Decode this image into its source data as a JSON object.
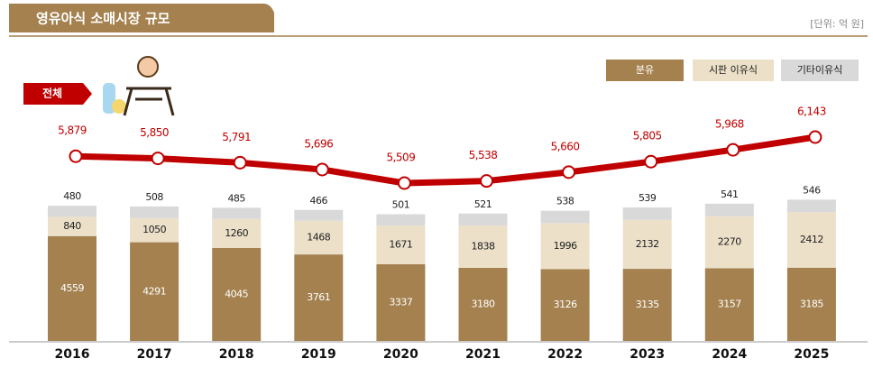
{
  "chart_data": {
    "type": "bar",
    "stacked": true,
    "title": "영유아식 소매시장 규모",
    "unit_note": "[단위: 억 원]",
    "categories": [
      "2016",
      "2017",
      "2018",
      "2019",
      "2020",
      "2021",
      "2022",
      "2023",
      "2024",
      "2025"
    ],
    "series": [
      {
        "name": "분유",
        "color": "#a4814f",
        "values": [
          4559,
          4291,
          4045,
          3761,
          3337,
          3180,
          3126,
          3135,
          3157,
          3185
        ]
      },
      {
        "name": "시판 이유식",
        "color": "#ece0c9",
        "values": [
          840,
          1050,
          1260,
          1468,
          1671,
          1838,
          1996,
          2132,
          2270,
          2412
        ]
      },
      {
        "name": "기타이유식",
        "color": "#d9d9d9",
        "values": [
          480,
          508,
          485,
          466,
          501,
          521,
          538,
          539,
          541,
          546
        ]
      }
    ],
    "total": {
      "name": "전체",
      "color": "#c00000",
      "values": [
        5879,
        5850,
        5791,
        5696,
        5509,
        5538,
        5660,
        5805,
        5968,
        6143
      ],
      "value_labels": [
        "5,879",
        "5,850",
        "5,791",
        "5,696",
        "5,509",
        "5,538",
        "5,660",
        "5,805",
        "5,968",
        "6,143"
      ]
    }
  }
}
